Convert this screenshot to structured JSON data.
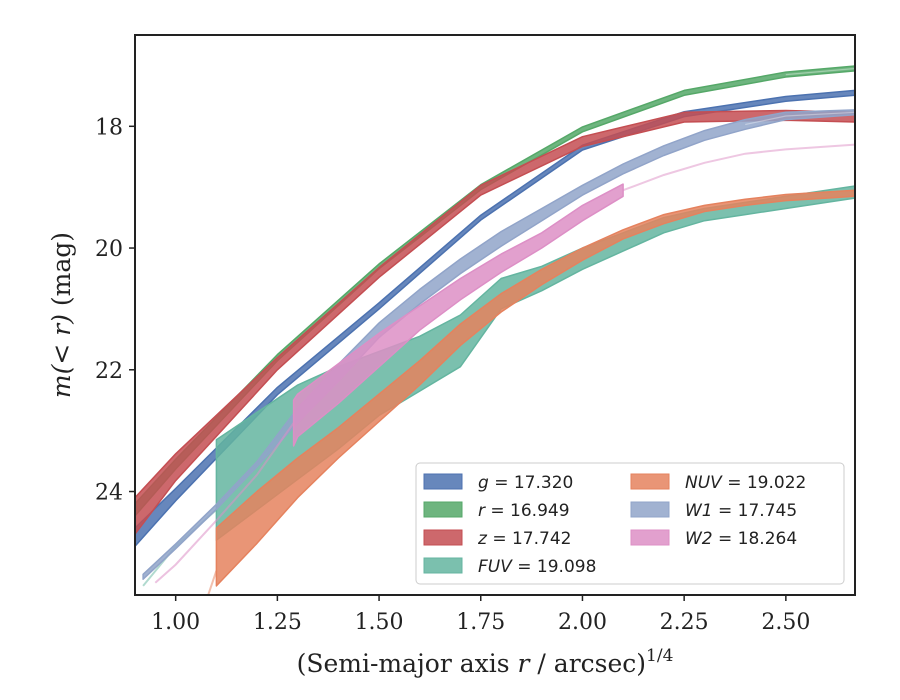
{
  "chart_data": {
    "type": "area",
    "xlabel_main": "(Semi-major axis ",
    "xlabel_var": "r",
    "xlabel_rest": " / arcsec)",
    "xlabel_sup": "1/4",
    "ylabel_main": "m(< r)",
    "ylabel_unit": " (mag)",
    "xlim": [
      0.9,
      2.67
    ],
    "ylim": [
      25.7,
      16.5
    ],
    "y_inverted": true,
    "xticks": [
      1.0,
      1.25,
      1.5,
      1.75,
      2.0,
      2.25,
      2.5
    ],
    "xtick_labels": [
      "1.00",
      "1.25",
      "1.50",
      "1.75",
      "2.00",
      "2.25",
      "2.50"
    ],
    "yticks": [
      18,
      20,
      22,
      24
    ],
    "ytick_labels": [
      "18",
      "20",
      "22",
      "24"
    ],
    "legend_position": "lower-right",
    "legend_columns": 2,
    "series": [
      {
        "key": "g",
        "band": "g",
        "value": "17.320",
        "color": "#4c72b0",
        "x": [
          0.9,
          1.0,
          1.25,
          1.5,
          1.75,
          2.0,
          2.25,
          2.5,
          2.67
        ],
        "y": [
          24.75,
          24.05,
          22.35,
          20.95,
          19.5,
          18.35,
          17.8,
          17.55,
          17.45
        ],
        "width": [
          0.15,
          0.1,
          0.06,
          0.05,
          0.04,
          0.04,
          0.04,
          0.04,
          0.04
        ],
        "ext_from": 99
      },
      {
        "key": "r",
        "band": "r",
        "value": "16.949",
        "color": "#55a868",
        "x": [
          0.9,
          1.0,
          1.25,
          1.5,
          1.75,
          2.0,
          2.25,
          2.5,
          2.67
        ],
        "y": [
          24.3,
          23.55,
          21.8,
          20.3,
          19.0,
          18.05,
          17.45,
          17.15,
          17.05
        ],
        "width": [
          0.1,
          0.08,
          0.05,
          0.04,
          0.04,
          0.04,
          0.04,
          0.04,
          0.04
        ],
        "ext_from": 7
      },
      {
        "key": "z",
        "band": "z",
        "value": "17.742",
        "color": "#c44e52",
        "x": [
          0.9,
          1.0,
          1.25,
          1.5,
          1.75,
          2.0,
          2.25,
          2.5,
          2.67
        ],
        "y": [
          24.4,
          23.6,
          21.9,
          20.4,
          19.05,
          18.25,
          17.85,
          17.82,
          17.85
        ],
        "width": [
          0.3,
          0.22,
          0.1,
          0.08,
          0.08,
          0.08,
          0.08,
          0.08,
          0.08
        ],
        "ext_from": 99
      },
      {
        "key": "FUV",
        "band": "FUV",
        "value": "19.098",
        "color": "#64b5a0",
        "x": [
          1.1,
          1.2,
          1.3,
          1.4,
          1.5,
          1.6,
          1.7,
          1.8,
          1.9,
          2.0,
          2.1,
          2.2,
          2.3,
          2.4,
          2.5,
          2.6,
          2.67
        ],
        "y_upper": [
          23.15,
          22.7,
          22.25,
          21.95,
          21.7,
          21.45,
          21.1,
          20.5,
          20.3,
          20.0,
          19.75,
          19.5,
          19.35,
          19.25,
          19.15,
          19.05,
          18.98
        ],
        "y_lower": [
          24.8,
          24.3,
          23.8,
          23.3,
          22.75,
          22.35,
          21.95,
          21.0,
          20.7,
          20.35,
          20.05,
          19.75,
          19.55,
          19.45,
          19.35,
          19.25,
          19.18
        ],
        "ext_x": [
          0.92,
          1.0,
          1.1
        ],
        "ext_y": [
          25.55,
          24.9,
          24.3
        ]
      },
      {
        "key": "NUV",
        "band": "NUV",
        "value": "19.022",
        "color": "#e5825e",
        "x": [
          1.1,
          1.2,
          1.3,
          1.4,
          1.5,
          1.6,
          1.7,
          1.8,
          1.9,
          2.0,
          2.1,
          2.2,
          2.3,
          2.4,
          2.5,
          2.6,
          2.67
        ],
        "y_upper": [
          24.6,
          24.0,
          23.45,
          22.95,
          22.4,
          21.85,
          21.25,
          20.75,
          20.35,
          20.0,
          19.7,
          19.45,
          19.3,
          19.2,
          19.12,
          19.08,
          19.05
        ],
        "y_lower": [
          25.55,
          24.85,
          24.1,
          23.45,
          22.85,
          22.25,
          21.6,
          21.05,
          20.6,
          20.2,
          19.85,
          19.6,
          19.4,
          19.3,
          19.22,
          19.18,
          19.15
        ],
        "ext_x": [
          1.08,
          1.1
        ],
        "ext_y": [
          25.7,
          25.3
        ]
      },
      {
        "key": "W1",
        "band": "W1",
        "value": "17.745",
        "color": "#91a4c9",
        "x": [
          0.92,
          1.0,
          1.1,
          1.2,
          1.3,
          1.4,
          1.5,
          1.6,
          1.7,
          1.8,
          1.9,
          2.0,
          2.1,
          2.2,
          2.3,
          2.4,
          2.5,
          2.67
        ],
        "y": [
          25.4,
          24.9,
          24.25,
          23.55,
          22.75,
          22.05,
          21.35,
          20.8,
          20.3,
          19.85,
          19.45,
          19.05,
          18.7,
          18.4,
          18.15,
          17.97,
          17.83,
          17.77
        ],
        "width": [
          0.04,
          0.04,
          0.04,
          0.04,
          0.12,
          0.14,
          0.12,
          0.12,
          0.12,
          0.12,
          0.1,
          0.08,
          0.08,
          0.08,
          0.08,
          0.08,
          0.06,
          0.04
        ],
        "ext_from": 15
      },
      {
        "key": "W2",
        "band": "W2",
        "value": "18.264",
        "color": "#dd8fc6",
        "x": [
          0.95,
          1.0,
          1.1,
          1.2,
          1.29,
          1.3,
          1.4,
          1.5,
          1.6,
          1.7,
          1.8,
          1.9,
          2.0,
          2.1
        ],
        "y_upper": [
          25.4,
          25.1,
          24.4,
          23.65,
          22.5,
          22.4,
          21.9,
          21.4,
          20.95,
          20.5,
          20.1,
          19.75,
          19.3,
          18.95
        ],
        "y_lower": [
          25.6,
          25.3,
          24.55,
          23.8,
          23.25,
          23.1,
          22.55,
          21.95,
          21.35,
          20.85,
          20.4,
          20.0,
          19.55,
          19.15
        ],
        "ext_x": [
          2.1,
          2.2,
          2.3,
          2.4,
          2.5,
          2.67
        ],
        "ext_y": [
          19.05,
          18.8,
          18.6,
          18.45,
          18.38,
          18.3
        ],
        "band_from": 4
      }
    ]
  }
}
